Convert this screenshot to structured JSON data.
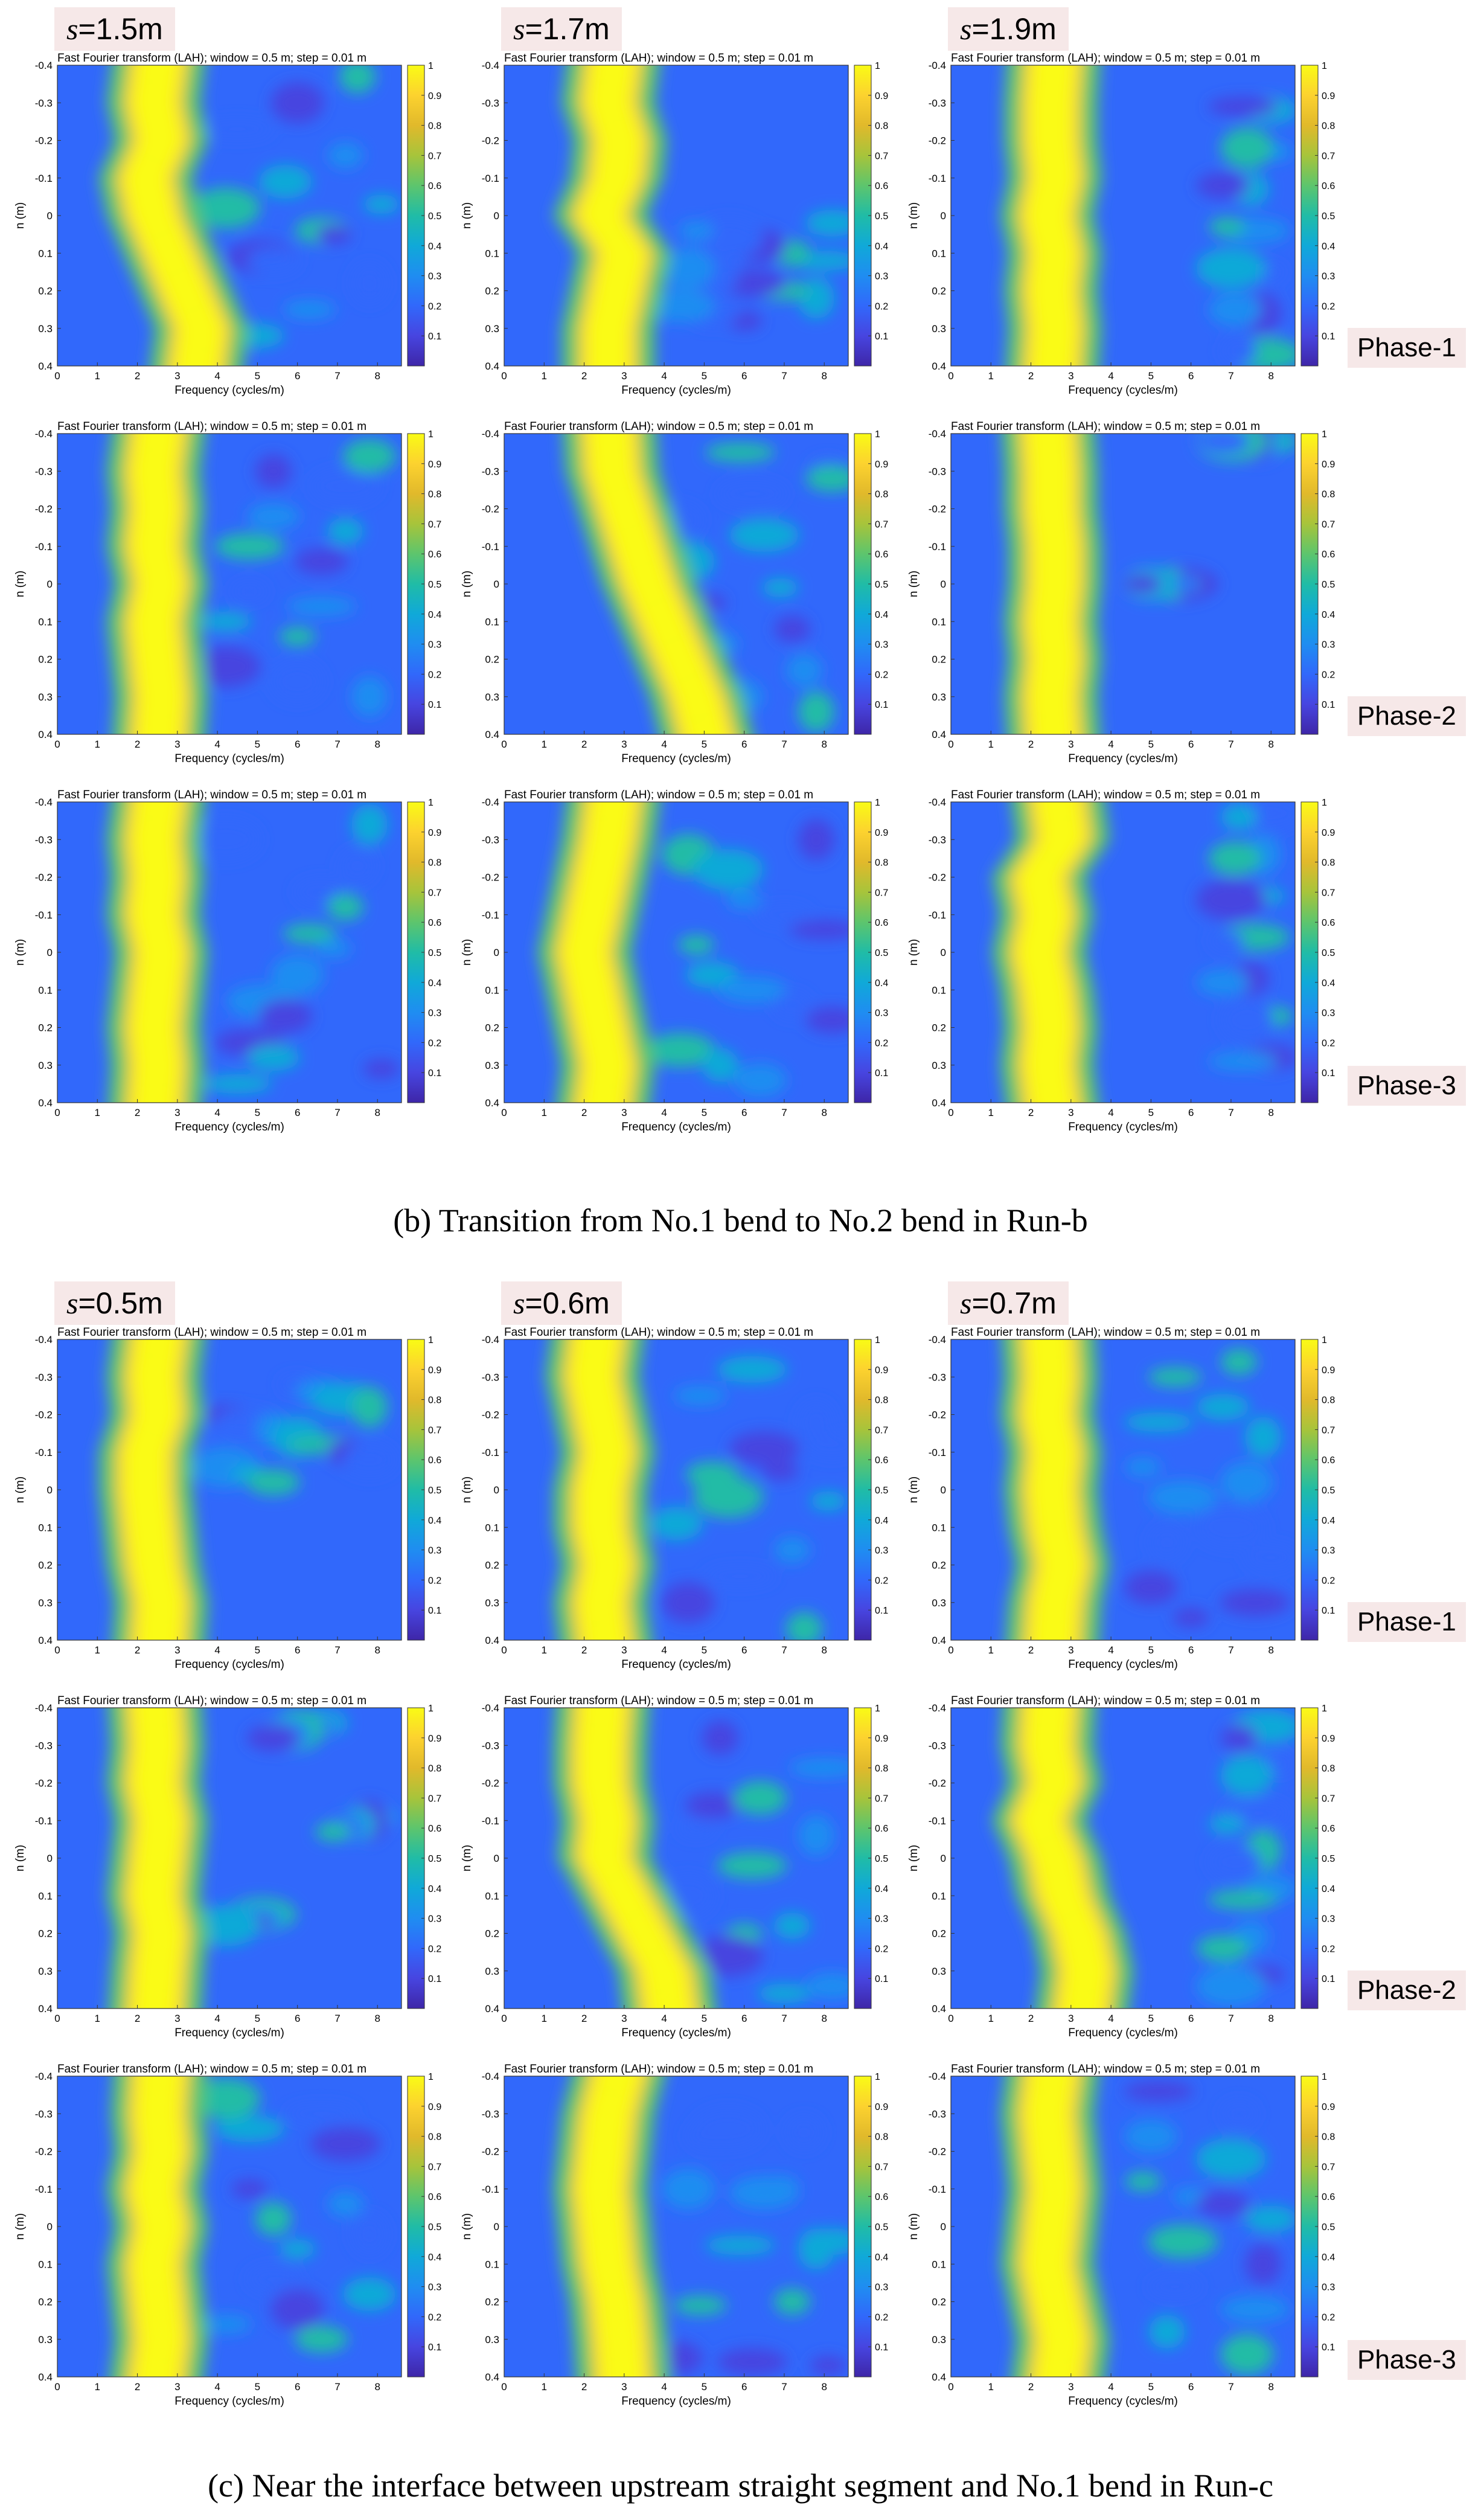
{
  "colormap": [
    "#3e26a8",
    "#4745e0",
    "#3168fb",
    "#1f8df1",
    "#10a9d8",
    "#20bca6",
    "#5dc56d",
    "#a7c43b",
    "#e1b92b",
    "#fcd22f",
    "#f9fb15"
  ],
  "panel_title": "Fast Fourier transform (LAH); window = 0.5 m; step = 0.01 m",
  "axis": {
    "xlabel": "Frequency (cycles/m)",
    "ylabel": "n (m)",
    "xticks": [
      "0",
      "1",
      "2",
      "3",
      "4",
      "5",
      "6",
      "7",
      "8"
    ],
    "yticks": [
      "-0.4",
      "-0.3",
      "-0.2",
      "-0.1",
      "0",
      "0.1",
      "0.2",
      "0.3",
      "0.4"
    ],
    "cbar_ticks": [
      "0.1",
      "0.2",
      "0.3",
      "0.4",
      "0.5",
      "0.6",
      "0.7",
      "0.8",
      "0.9",
      "1"
    ]
  },
  "section_b": {
    "s_prefix": "s",
    "s_values": [
      "=1.5m",
      "=1.7m",
      "=1.9m"
    ],
    "phases": [
      "Phase-1",
      "Phase-2",
      "Phase-3"
    ],
    "caption": "(b) Transition from No.1 bend to No.2 bend in Run-b"
  },
  "section_c": {
    "s_prefix": "s",
    "s_values": [
      "=0.5m",
      "=0.6m",
      "=0.7m"
    ],
    "phases": [
      "Phase-1",
      "Phase-2",
      "Phase-3"
    ],
    "caption": "(c) Near the interface between upstream straight segment and No.1 bend in Run-c"
  },
  "chart_data": {
    "type": "heatmap",
    "title": "Fast Fourier transform (LAH); window = 0.5 m; step = 0.01 m",
    "xlabel": "Frequency (cycles/m)",
    "ylabel": "n (m)",
    "xlim": [
      0,
      8.6
    ],
    "ylim": [
      -0.4,
      0.4
    ],
    "clim": [
      0,
      1
    ],
    "panels": [
      {
        "section": "b",
        "s": "1.5m",
        "phase": "Phase-1",
        "dominant_frequency_cycles_per_m": [
          2.6,
          2.4,
          2.6,
          2.2,
          2.4,
          2.8,
          3.2,
          3.6,
          3.4
        ]
      },
      {
        "section": "b",
        "s": "1.7m",
        "phase": "Phase-1",
        "dominant_frequency_cycles_per_m": [
          2.8,
          2.6,
          2.9,
          2.8,
          2.4,
          3.0,
          2.8,
          2.6,
          2.6
        ]
      },
      {
        "section": "b",
        "s": "1.9m",
        "phase": "Phase-1",
        "dominant_frequency_cycles_per_m": [
          2.6,
          2.5,
          2.5,
          2.6,
          2.4,
          2.6,
          2.5,
          2.6,
          2.5
        ]
      },
      {
        "section": "b",
        "s": "1.5m",
        "phase": "Phase-2",
        "dominant_frequency_cycles_per_m": [
          2.6,
          2.4,
          2.5,
          2.4,
          2.6,
          2.4,
          2.5,
          2.6,
          2.5
        ]
      },
      {
        "section": "b",
        "s": "1.7m",
        "phase": "Phase-2",
        "dominant_frequency_cycles_per_m": [
          2.6,
          2.7,
          3.0,
          3.3,
          3.6,
          4.0,
          4.4,
          4.8,
          5.2
        ]
      },
      {
        "section": "b",
        "s": "1.9m",
        "phase": "Phase-2",
        "dominant_frequency_cycles_per_m": [
          2.4,
          2.5,
          2.5,
          2.6,
          2.6,
          2.5,
          2.6,
          2.5,
          2.6
        ]
      },
      {
        "section": "b",
        "s": "1.5m",
        "phase": "Phase-3",
        "dominant_frequency_cycles_per_m": [
          2.6,
          2.4,
          2.5,
          2.4,
          2.6,
          2.5,
          2.4,
          2.5,
          2.4
        ]
      },
      {
        "section": "b",
        "s": "1.7m",
        "phase": "Phase-3",
        "dominant_frequency_cycles_per_m": [
          2.8,
          2.6,
          2.4,
          2.2,
          2.0,
          2.2,
          2.4,
          2.6,
          2.4
        ]
      },
      {
        "section": "b",
        "s": "1.9m",
        "phase": "Phase-3",
        "dominant_frequency_cycles_per_m": [
          2.6,
          2.8,
          2.2,
          2.4,
          2.2,
          2.4,
          2.5,
          2.4,
          2.6
        ]
      },
      {
        "section": "c",
        "s": "0.5m",
        "phase": "Phase-1",
        "dominant_frequency_cycles_per_m": [
          2.6,
          2.4,
          2.5,
          2.2,
          2.2,
          2.3,
          2.4,
          2.6,
          2.5
        ]
      },
      {
        "section": "c",
        "s": "0.6m",
        "phase": "Phase-1",
        "dominant_frequency_cycles_per_m": [
          2.4,
          2.2,
          2.4,
          2.6,
          2.4,
          2.4,
          2.6,
          2.4,
          2.6
        ]
      },
      {
        "section": "c",
        "s": "0.7m",
        "phase": "Phase-1",
        "dominant_frequency_cycles_per_m": [
          2.4,
          2.5,
          2.4,
          2.6,
          2.5,
          2.6,
          2.8,
          2.6,
          2.5
        ]
      },
      {
        "section": "c",
        "s": "0.5m",
        "phase": "Phase-2",
        "dominant_frequency_cycles_per_m": [
          2.4,
          2.5,
          2.4,
          2.6,
          2.5,
          2.4,
          2.6,
          2.5,
          2.4
        ]
      },
      {
        "section": "c",
        "s": "0.6m",
        "phase": "Phase-2",
        "dominant_frequency_cycles_per_m": [
          2.5,
          2.4,
          2.4,
          2.6,
          2.5,
          3.0,
          3.5,
          4.0,
          4.2
        ]
      },
      {
        "section": "c",
        "s": "0.7m",
        "phase": "Phase-2",
        "dominant_frequency_cycles_per_m": [
          2.5,
          2.4,
          2.6,
          2.2,
          2.6,
          2.8,
          3.2,
          3.4,
          3.2
        ]
      },
      {
        "section": "c",
        "s": "0.5m",
        "phase": "Phase-3",
        "dominant_frequency_cycles_per_m": [
          2.6,
          2.5,
          2.6,
          2.4,
          2.6,
          2.4,
          2.5,
          2.6,
          2.4
        ]
      },
      {
        "section": "c",
        "s": "0.6m",
        "phase": "Phase-3",
        "dominant_frequency_cycles_per_m": [
          3.0,
          2.6,
          2.5,
          2.4,
          2.5,
          2.6,
          2.8,
          2.9,
          3.0
        ]
      },
      {
        "section": "c",
        "s": "0.7m",
        "phase": "Phase-3",
        "dominant_frequency_cycles_per_m": [
          2.6,
          2.4,
          2.5,
          2.6,
          2.5,
          2.4,
          2.6,
          2.8,
          2.6
        ]
      }
    ]
  }
}
